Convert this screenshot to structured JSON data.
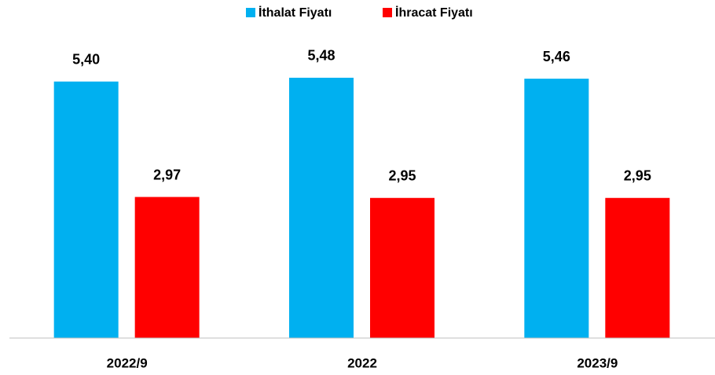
{
  "chart_data": {
    "type": "bar",
    "categories": [
      "2022/9",
      "2022",
      "2023/9"
    ],
    "series": [
      {
        "name": "İthalat Fiyatı",
        "color": "#00b0f0",
        "values": [
          5.4,
          5.48,
          5.46
        ],
        "value_labels": [
          "5,40",
          "5,48",
          "5,46"
        ]
      },
      {
        "name": "İhracat Fiyatı",
        "color": "#ff0000",
        "values": [
          2.97,
          2.95,
          2.95
        ],
        "value_labels": [
          "2,97",
          "2,95",
          "2,95"
        ]
      }
    ],
    "ylim": [
      0,
      7.1
    ],
    "legend": "top"
  }
}
